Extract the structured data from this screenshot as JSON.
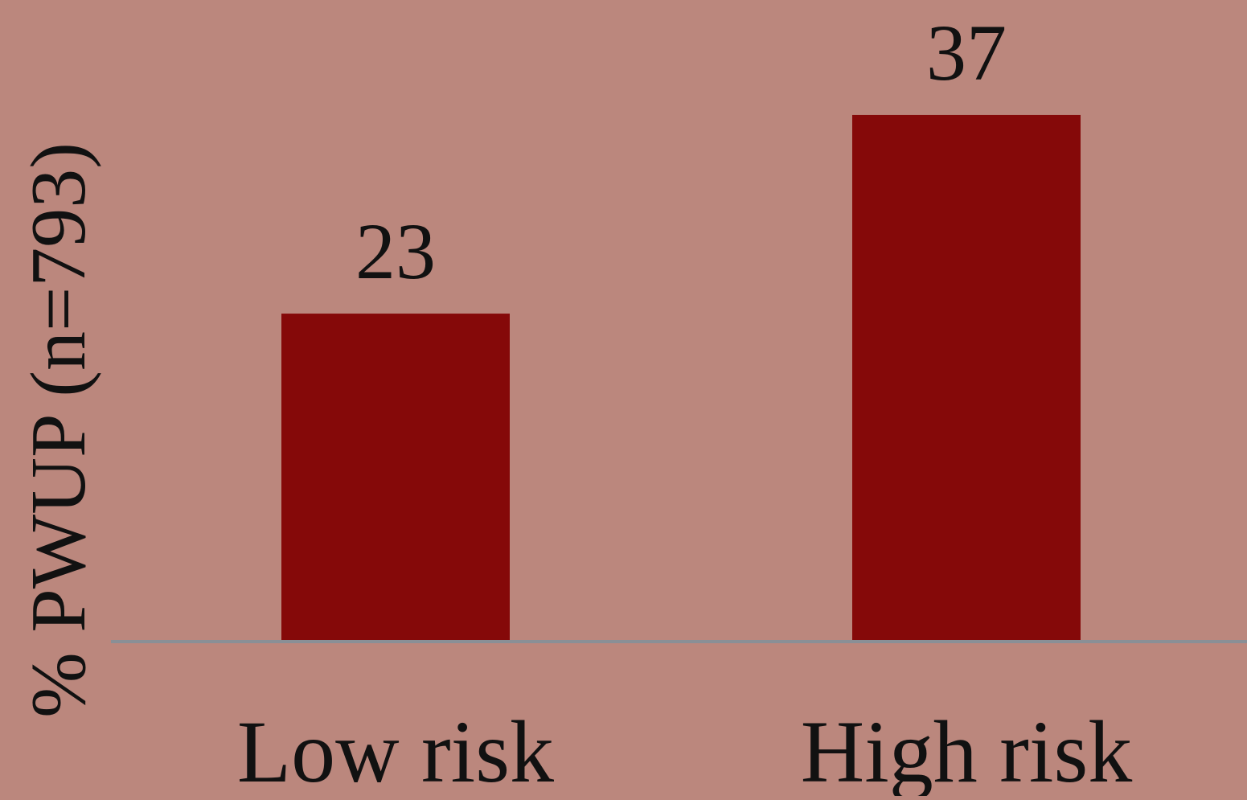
{
  "chart_data": {
    "type": "bar",
    "categories": [
      "Low risk",
      "High risk"
    ],
    "values": [
      23,
      37
    ],
    "data_labels": [
      "23",
      "37"
    ],
    "title": "",
    "xlabel": "",
    "ylabel": "% PWUP (n=793)",
    "ylim": [
      0,
      40
    ],
    "grid": false,
    "legend": "none",
    "colors": {
      "background": "#bb877d",
      "bar": "#850909",
      "axis": "#8a8f96",
      "text": "#111111"
    }
  }
}
